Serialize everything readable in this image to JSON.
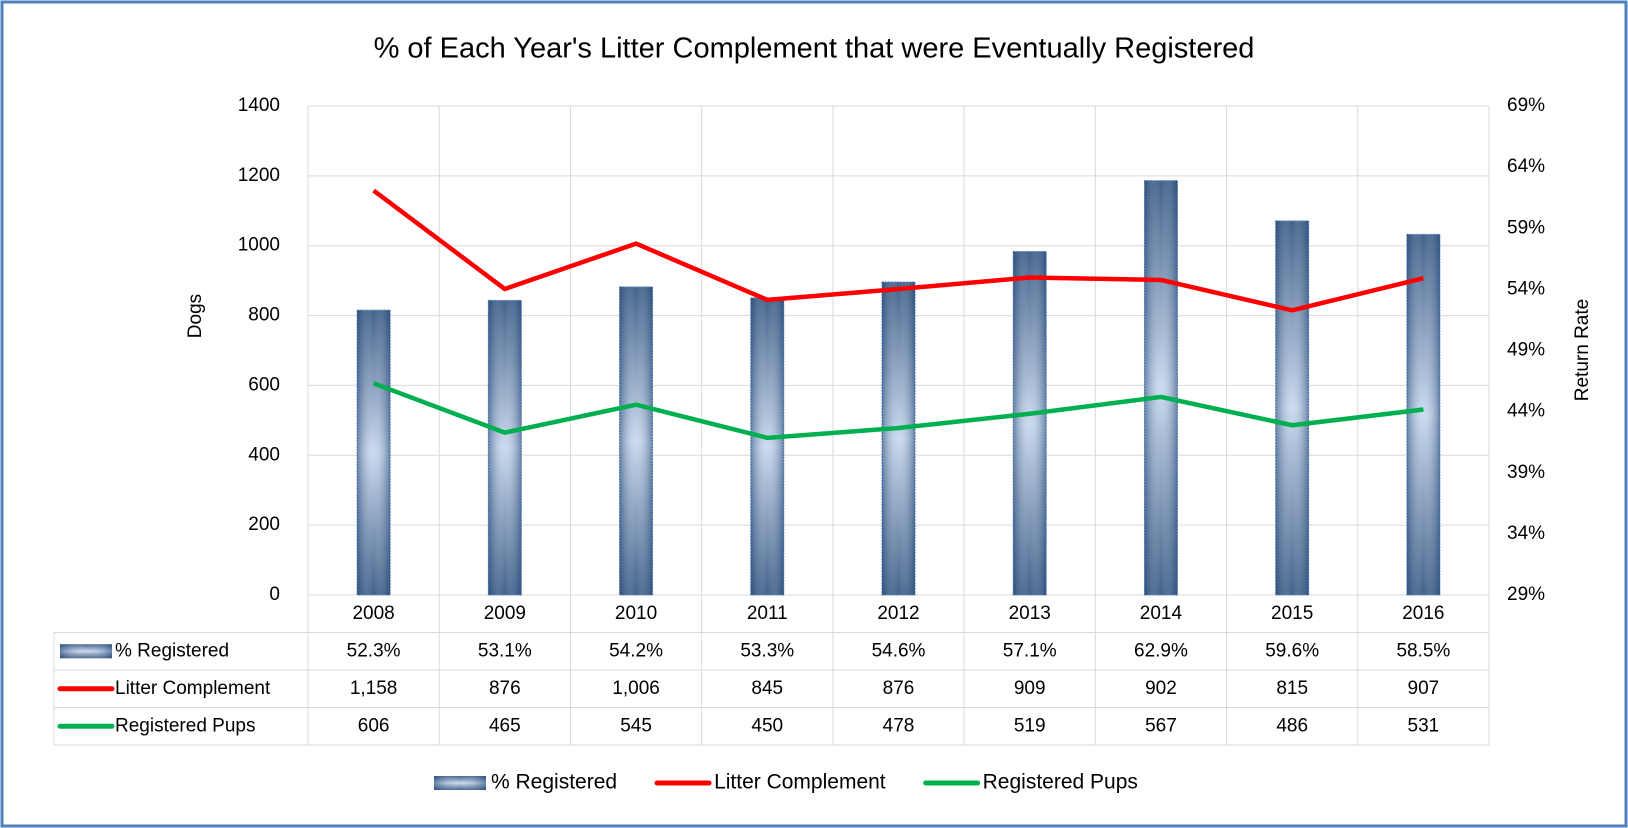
{
  "chart_data": {
    "type": "combo",
    "title": "% of Each Year's Litter Complement that were Eventually Registered",
    "y_label": "Dogs",
    "y2_label": "Return Rate",
    "categories": [
      "2008",
      "2009",
      "2010",
      "2011",
      "2012",
      "2013",
      "2014",
      "2015",
      "2016"
    ],
    "series": [
      {
        "name": "% Registered",
        "type": "bar",
        "axis": "y2",
        "color": "#4f81bd",
        "values": [
          52.3,
          53.1,
          54.2,
          53.3,
          54.6,
          57.1,
          62.9,
          59.6,
          58.5
        ],
        "value_labels": [
          "52.3%",
          "53.1%",
          "54.2%",
          "53.3%",
          "54.6%",
          "57.1%",
          "62.9%",
          "59.6%",
          "58.5%"
        ]
      },
      {
        "name": "Litter Complement",
        "type": "line",
        "axis": "y",
        "color": "#ff0000",
        "values": [
          1158,
          876,
          1006,
          845,
          876,
          909,
          902,
          815,
          907
        ],
        "value_labels": [
          "1,158",
          "876",
          "1,006",
          "845",
          "876",
          "909",
          "902",
          "815",
          "907"
        ]
      },
      {
        "name": "Registered Pups",
        "type": "line",
        "axis": "y",
        "color": "#00b050",
        "values": [
          606,
          465,
          545,
          450,
          478,
          519,
          567,
          486,
          531
        ]
      }
    ],
    "ylim": [
      0,
      1400
    ],
    "yticks": [
      0,
      200,
      400,
      600,
      800,
      1000,
      1200,
      1400
    ],
    "y2lim": [
      29,
      69
    ],
    "y2ticks": [
      {
        "value": 29,
        "label": "29%"
      },
      {
        "value": 34,
        "label": "34%"
      },
      {
        "value": 39,
        "label": "39%"
      },
      {
        "value": 44,
        "label": "44%"
      },
      {
        "value": 49,
        "label": "49%"
      },
      {
        "value": 54,
        "label": "54%"
      },
      {
        "value": 59,
        "label": "59%"
      },
      {
        "value": 64,
        "label": "64%"
      },
      {
        "value": 69,
        "label": "69%"
      }
    ],
    "grid": true,
    "legend": "bottom",
    "data_table": true
  }
}
